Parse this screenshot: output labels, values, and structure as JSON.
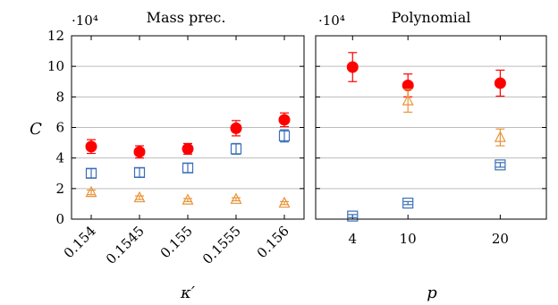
{
  "chart_data": [
    {
      "type": "scatter",
      "title": "Mass prec.",
      "xlabel": "κ′",
      "ylabel": "C",
      "multiplier_label": "·10⁴",
      "x_ticks": [
        "0.154",
        "0.1545",
        "0.155",
        "0.1555",
        "0.156"
      ],
      "y_ticks": [
        "0",
        "2",
        "4",
        "6",
        "8",
        "10",
        "12"
      ],
      "xlim": [
        0.154,
        0.156
      ],
      "ylim": [
        0,
        12
      ],
      "grid": "horizontal",
      "series": [
        {
          "marker": "circle",
          "color": "#ff0000",
          "x": [
            0.154,
            0.1545,
            0.155,
            0.1555,
            0.156
          ],
          "y": [
            4.75,
            4.4,
            4.6,
            5.95,
            6.5
          ],
          "err": [
            0.45,
            0.4,
            0.35,
            0.5,
            0.45
          ]
        },
        {
          "marker": "square",
          "color": "#3b6fb6",
          "x": [
            0.154,
            0.1545,
            0.155,
            0.1555,
            0.156
          ],
          "y": [
            3.0,
            3.05,
            3.35,
            4.6,
            5.45
          ],
          "err": [
            0.3,
            0.3,
            0.3,
            0.35,
            0.4
          ]
        },
        {
          "marker": "triangle",
          "color": "#e8943a",
          "x": [
            0.154,
            0.1545,
            0.155,
            0.1555,
            0.156
          ],
          "y": [
            1.75,
            1.4,
            1.25,
            1.3,
            1.05
          ],
          "err": [
            0.15,
            0.12,
            0.1,
            0.1,
            0.1
          ]
        }
      ]
    },
    {
      "type": "scatter",
      "title": "Polynomial",
      "xlabel": "p",
      "ylabel": "",
      "multiplier_label": "·10⁴",
      "x_ticks": [
        "4",
        "10",
        "20"
      ],
      "xlim": [
        0,
        25
      ],
      "ylim": [
        0,
        12
      ],
      "grid": "horizontal",
      "series": [
        {
          "marker": "circle",
          "color": "#ff0000",
          "x": [
            4,
            10,
            20
          ],
          "y": [
            9.95,
            8.75,
            8.9
          ],
          "err": [
            0.95,
            0.75,
            0.85
          ]
        },
        {
          "marker": "square",
          "color": "#3b6fb6",
          "x": [
            4,
            10,
            20
          ],
          "y": [
            0.2,
            1.05,
            3.55
          ],
          "err": [
            0.1,
            0.1,
            0.15
          ]
        },
        {
          "marker": "triangle",
          "color": "#e8943a",
          "x": [
            10,
            20
          ],
          "y": [
            7.75,
            5.35
          ],
          "err": [
            0.75,
            0.55
          ]
        }
      ]
    }
  ]
}
